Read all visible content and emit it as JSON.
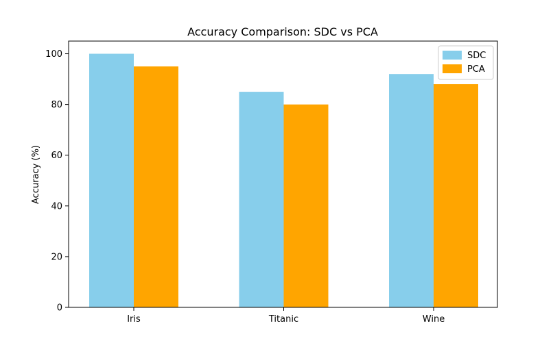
{
  "chart_data": {
    "type": "bar",
    "title": "Accuracy Comparison: SDC vs PCA",
    "xlabel": "",
    "ylabel": "Accuracy (%)",
    "categories": [
      "Iris",
      "Titanic",
      "Wine"
    ],
    "series": [
      {
        "name": "SDC",
        "values": [
          100,
          85,
          92
        ],
        "color": "#87CEEB"
      },
      {
        "name": "PCA",
        "values": [
          95,
          80,
          88
        ],
        "color": "#FFA500"
      }
    ],
    "ylim": [
      0,
      105
    ],
    "yticks": [
      0,
      20,
      40,
      60,
      80,
      100
    ],
    "grid": false,
    "legend_position": "top-right"
  }
}
